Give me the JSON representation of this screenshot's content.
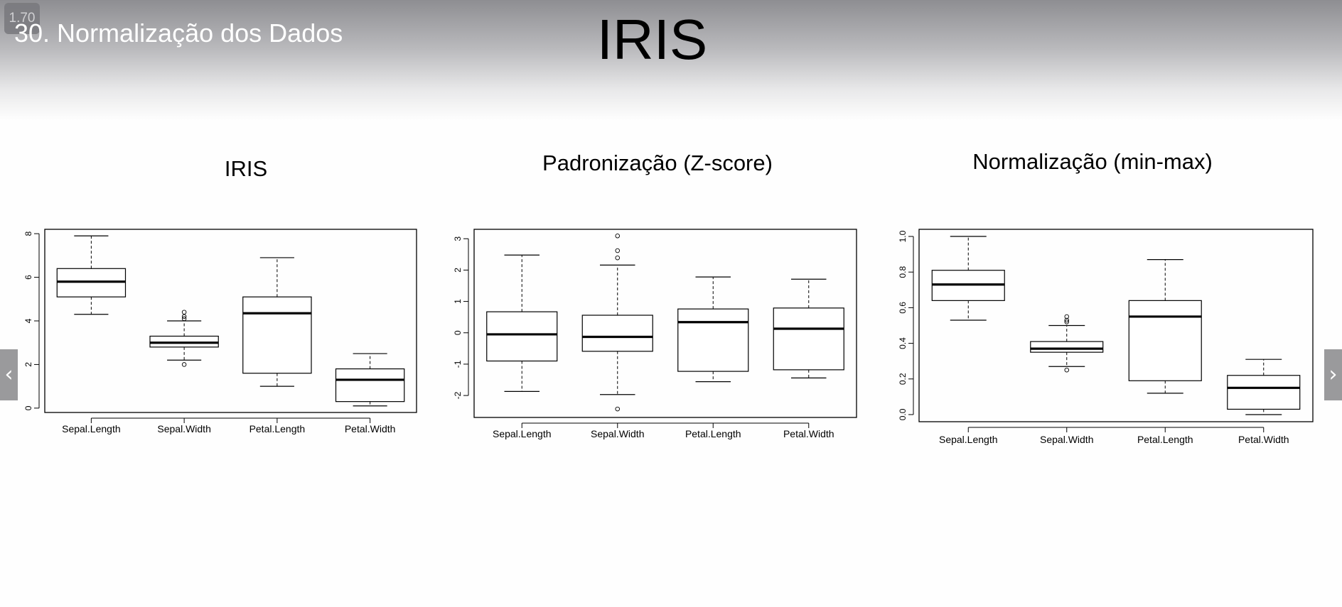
{
  "presentation": {
    "zoom": "1.70",
    "slide_label": "30. Normalização dos Dados",
    "title": "IRIS"
  },
  "navigation": {
    "prev_icon": "chevron-left-icon",
    "next_icon": "chevron-right-icon",
    "prev_glyph": "‹",
    "next_glyph": "›"
  },
  "chart_data": [
    {
      "type": "boxplot",
      "title": "IRIS",
      "categories": [
        "Sepal.Length",
        "Sepal.Width",
        "Petal.Length",
        "Petal.Width"
      ],
      "ylim": [
        -0.2,
        8.2
      ],
      "yticks": [
        "0",
        "2",
        "4",
        "6",
        "8"
      ],
      "ytick_values": [
        0,
        2,
        4,
        6,
        8
      ],
      "boxes": [
        {
          "whisker_low": 4.3,
          "q1": 5.1,
          "median": 5.8,
          "q3": 6.4,
          "whisker_high": 7.9,
          "outliers": []
        },
        {
          "whisker_low": 2.2,
          "q1": 2.8,
          "median": 3.0,
          "q3": 3.3,
          "whisker_high": 4.0,
          "outliers": [
            4.4,
            4.2,
            4.1,
            2.0
          ]
        },
        {
          "whisker_low": 1.0,
          "q1": 1.6,
          "median": 4.35,
          "q3": 5.1,
          "whisker_high": 6.9,
          "outliers": []
        },
        {
          "whisker_low": 0.1,
          "q1": 0.3,
          "median": 1.3,
          "q3": 1.8,
          "whisker_high": 2.5,
          "outliers": []
        }
      ],
      "grid": false,
      "legend": "none"
    },
    {
      "type": "boxplot",
      "title": "Padronização (Z-score)",
      "categories": [
        "Sepal.Length",
        "Sepal.Width",
        "Petal.Length",
        "Petal.Width"
      ],
      "ylim": [
        -2.7,
        3.3
      ],
      "yticks": [
        "-2",
        "-1",
        "0",
        "1",
        "2",
        "3"
      ],
      "ytick_values": [
        -2,
        -1,
        0,
        1,
        2,
        3
      ],
      "boxes": [
        {
          "whisker_low": -1.87,
          "q1": -0.9,
          "median": -0.05,
          "q3": 0.67,
          "whisker_high": 2.48,
          "outliers": []
        },
        {
          "whisker_low": -1.97,
          "q1": -0.59,
          "median": -0.13,
          "q3": 0.56,
          "whisker_high": 2.16,
          "outliers": [
            3.09,
            2.62,
            2.39,
            -2.43
          ]
        },
        {
          "whisker_low": -1.56,
          "q1": -1.23,
          "median": 0.34,
          "q3": 0.76,
          "whisker_high": 1.78,
          "outliers": []
        },
        {
          "whisker_low": -1.44,
          "q1": -1.18,
          "median": 0.13,
          "q3": 0.79,
          "whisker_high": 1.71,
          "outliers": []
        }
      ],
      "grid": false,
      "legend": "none"
    },
    {
      "type": "boxplot",
      "title": "Normalização (min-max)",
      "categories": [
        "Sepal.Length",
        "Sepal.Width",
        "Petal.Length",
        "Petal.Width"
      ],
      "ylim": [
        -0.04,
        1.04
      ],
      "yticks": [
        "0.0",
        "0.2",
        "0.4",
        "0.6",
        "0.8",
        "1.0"
      ],
      "ytick_values": [
        0,
        0.2,
        0.4,
        0.6,
        0.8,
        1.0
      ],
      "boxes": [
        {
          "whisker_low": 0.53,
          "q1": 0.64,
          "median": 0.73,
          "q3": 0.81,
          "whisker_high": 1.0,
          "outliers": []
        },
        {
          "whisker_low": 0.27,
          "q1": 0.35,
          "median": 0.37,
          "q3": 0.41,
          "whisker_high": 0.5,
          "outliers": [
            0.55,
            0.53,
            0.52,
            0.25
          ]
        },
        {
          "whisker_low": 0.12,
          "q1": 0.19,
          "median": 0.55,
          "q3": 0.64,
          "whisker_high": 0.87,
          "outliers": []
        },
        {
          "whisker_low": 0.0,
          "q1": 0.03,
          "median": 0.15,
          "q3": 0.22,
          "whisker_high": 0.31,
          "outliers": []
        }
      ],
      "grid": false,
      "legend": "none"
    }
  ]
}
